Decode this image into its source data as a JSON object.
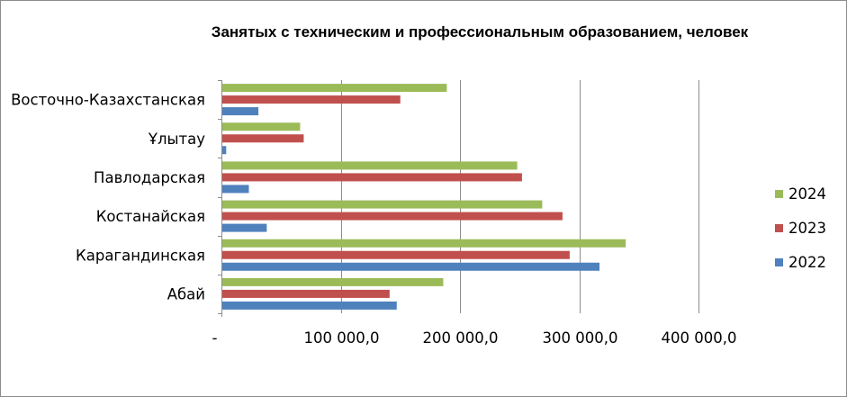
{
  "chart_data": {
    "type": "bar",
    "orientation": "horizontal",
    "title": "Занятых с техническим и профессиональным образованием, человек",
    "categories": [
      "Абай",
      "Карагандинская",
      "Костанайская",
      "Павлодарская",
      "Ұлытау",
      "Восточно-Казахстанская"
    ],
    "series": [
      {
        "name": "2022",
        "color": "#4f81bd",
        "values": [
          147000,
          317000,
          38000,
          23000,
          4000,
          31000
        ]
      },
      {
        "name": "2023",
        "color": "#c0504d",
        "values": [
          141000,
          292000,
          286000,
          252000,
          69000,
          150000
        ]
      },
      {
        "name": "2024",
        "color": "#9bbb59",
        "values": [
          186000,
          339000,
          269000,
          248000,
          66000,
          189000
        ]
      }
    ],
    "xlim": [
      0,
      400000
    ],
    "xticks": [
      0,
      100000,
      200000,
      300000,
      400000
    ],
    "xtick_labels": [
      "-",
      "100 000,0",
      "200 000,0",
      "300 000,0",
      "400 000,0"
    ],
    "grid": "vertical",
    "legend_position": "right"
  }
}
